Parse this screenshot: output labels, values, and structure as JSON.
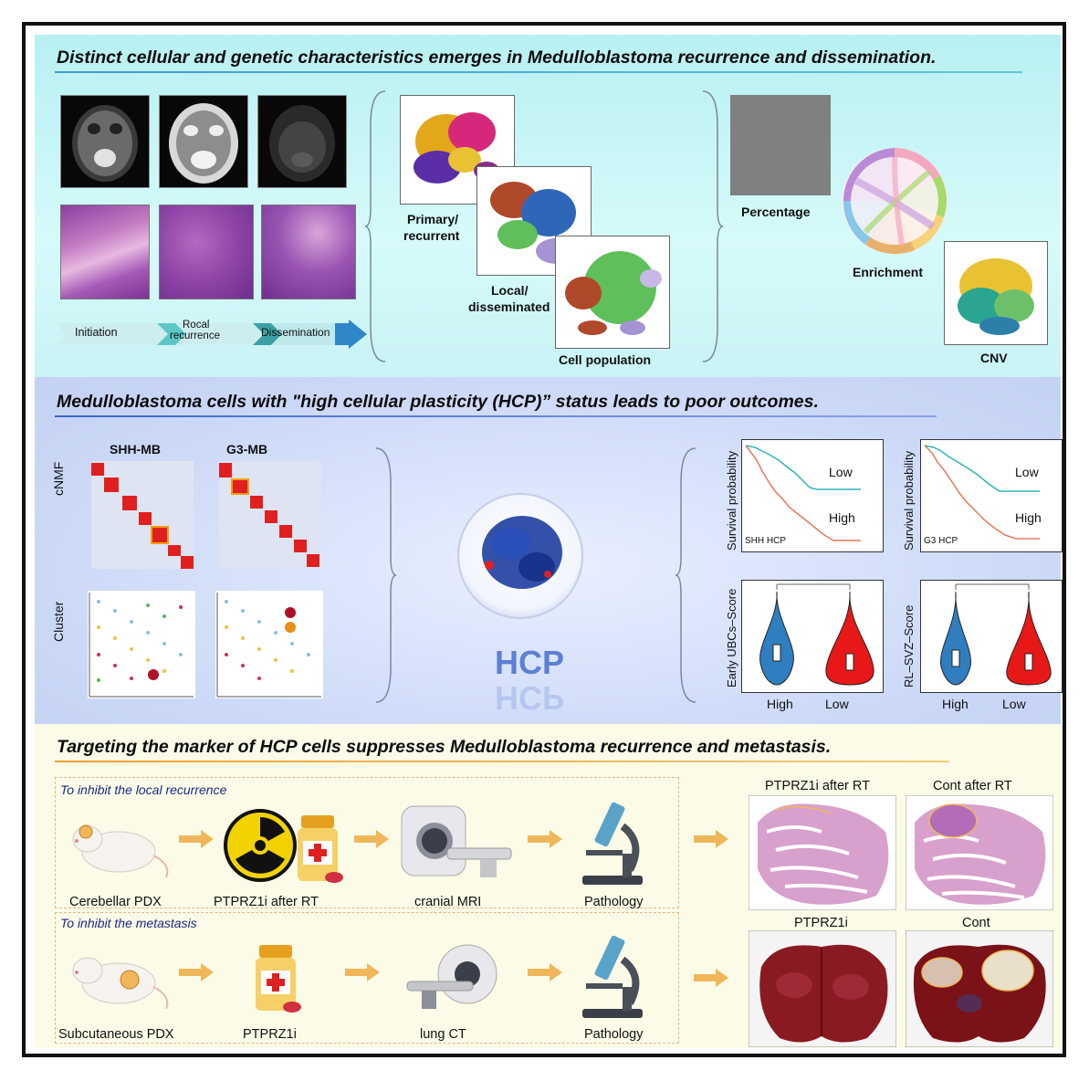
{
  "panel1": {
    "title": "Distinct cellular and genetic characteristics emerges in Medulloblastoma recurrence and dissemination.",
    "timeline": {
      "step1": "Initiation",
      "step2a": "Rocal",
      "step2b": "recurrence",
      "step3": "Dissemination"
    },
    "umap_labels": {
      "primary": "Primary/",
      "primary2": "recurrent",
      "local": "Local/",
      "local2": "disseminated",
      "cellpop": "Cell population"
    },
    "analysis_labels": {
      "percentage": "Percentage",
      "enrichment": "Enrichment",
      "cnv": "CNV"
    }
  },
  "panel2": {
    "title": "Medulloblastoma cells with \"high cellular plasticity (HCP)” status leads to poor outcomes.",
    "heatmap_titles": {
      "shh": "SHH-MB",
      "g3": "G3-MB"
    },
    "row_labels": {
      "cnmf": "cNMF",
      "cluster": "Cluster"
    },
    "hcp_label": "HCP",
    "survival": {
      "ylabel": "Survival probability",
      "low": "Low",
      "high": "High",
      "shh_tag": "SHH HCP",
      "g3_tag": "G3 HCP"
    },
    "violin": {
      "ylabel_left": "Early UBCs–Score",
      "ylabel_right": "RL–SVZ–Score",
      "x_high": "High",
      "x_low": "Low"
    },
    "colors": {
      "low_curve": "#2bb5b8",
      "high_curve": "#e8775a",
      "violin_high": "#2f7fc0",
      "violin_low": "#e81818"
    }
  },
  "panel3": {
    "title": "Targeting the marker of HCP cells suppresses Medulloblastoma recurrence and metastasis.",
    "row1": {
      "heading": "To inhibit the local recurrence",
      "steps": [
        "Cerebellar PDX",
        "PTPRZ1i after RT",
        "cranial MRI",
        "Pathology"
      ],
      "results": [
        "PTPRZ1i after RT",
        "Cont after RT"
      ]
    },
    "row2": {
      "heading": "To inhibit the metastasis",
      "steps": [
        "Subcutaneous PDX",
        "PTPRZ1i",
        "lung CT",
        "Pathology"
      ],
      "results": [
        "PTPRZ1i",
        "Cont"
      ]
    },
    "colors": {
      "arrow": "#f0b75a",
      "heading": "#1a2a8a"
    }
  }
}
